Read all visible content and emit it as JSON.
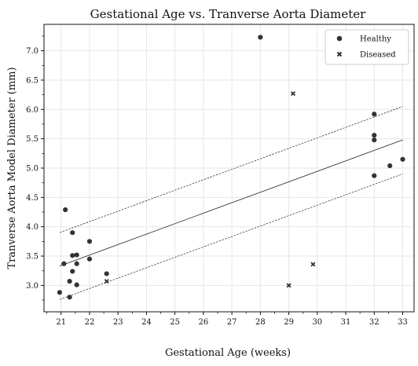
{
  "chart_data": {
    "type": "scatter",
    "title": "Gestational Age vs. Tranverse Aorta Diameter",
    "xlabel": "Gestational Age (weeks)",
    "ylabel": "Tranverse Aorta Model Diameter (mm)",
    "xlim": [
      20.4,
      33.4
    ],
    "ylim": [
      2.55,
      7.45
    ],
    "xticks": [
      "21",
      "22",
      "23",
      "24",
      "25",
      "26",
      "27",
      "28",
      "29",
      "30",
      "31",
      "32",
      "33"
    ],
    "yticks": [
      "3.0",
      "3.5",
      "4.0",
      "4.5",
      "5.0",
      "5.5",
      "6.0",
      "6.5",
      "7.0"
    ],
    "grid": true,
    "legend_position": "top-right",
    "colors": {
      "points": "#333333",
      "lines": "#222222",
      "grid": "#e6e6e6"
    },
    "series": [
      {
        "name": "Healthy",
        "marker": "circle",
        "points": [
          [
            20.95,
            2.88
          ],
          [
            21.1,
            3.37
          ],
          [
            21.15,
            4.29
          ],
          [
            21.3,
            2.8
          ],
          [
            21.3,
            3.07
          ],
          [
            21.4,
            3.9
          ],
          [
            21.4,
            3.51
          ],
          [
            21.4,
            3.24
          ],
          [
            21.55,
            3.52
          ],
          [
            21.55,
            3.37
          ],
          [
            21.55,
            3.01
          ],
          [
            22.0,
            3.75
          ],
          [
            22.0,
            3.45
          ],
          [
            22.6,
            3.2
          ],
          [
            28.0,
            7.23
          ],
          [
            32.0,
            5.92
          ],
          [
            32.0,
            5.56
          ],
          [
            32.0,
            5.48
          ],
          [
            32.0,
            4.87
          ],
          [
            32.55,
            5.04
          ],
          [
            33.0,
            5.15
          ]
        ]
      },
      {
        "name": "Diseased",
        "marker": "x",
        "points": [
          [
            22.6,
            3.07
          ],
          [
            29.0,
            3.0
          ],
          [
            29.15,
            6.27
          ],
          [
            29.85,
            3.36
          ]
        ]
      }
    ],
    "fit_line": {
      "x": [
        20.95,
        33.0
      ],
      "y": [
        3.33,
        5.48
      ]
    },
    "upper_band": {
      "x": [
        20.95,
        33.0
      ],
      "y": [
        3.9,
        6.05
      ]
    },
    "lower_band": {
      "x": [
        20.95,
        33.0
      ],
      "y": [
        2.76,
        4.9
      ]
    }
  }
}
